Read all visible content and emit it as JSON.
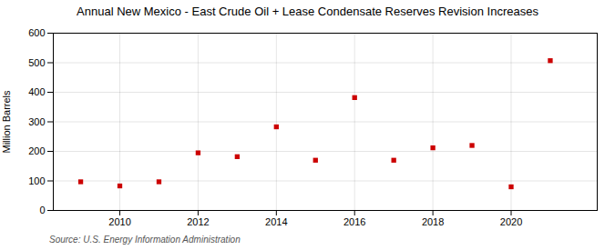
{
  "chart_data": {
    "type": "scatter",
    "title": "Annual New Mexico - East Crude Oil + Lease Condensate Reserves Revision Increases",
    "ylabel": "Million Barrels",
    "annotations": [
      "Source: U.S. Energy Information Administration"
    ],
    "x": [
      2009,
      2010,
      2011,
      2012,
      2013,
      2014,
      2015,
      2016,
      2017,
      2018,
      2019,
      2020,
      2021
    ],
    "values": [
      97,
      83,
      97,
      195,
      182,
      283,
      170,
      382,
      170,
      212,
      220,
      80,
      507
    ],
    "xlim": [
      2008.3,
      2022.2
    ],
    "ylim": [
      0,
      600
    ],
    "xticks": [
      2010,
      2012,
      2014,
      2016,
      2018,
      2020
    ],
    "yticks": [
      0,
      100,
      200,
      300,
      400,
      500,
      600
    ],
    "color": "#cc0000",
    "marker": "square",
    "grid": true
  }
}
